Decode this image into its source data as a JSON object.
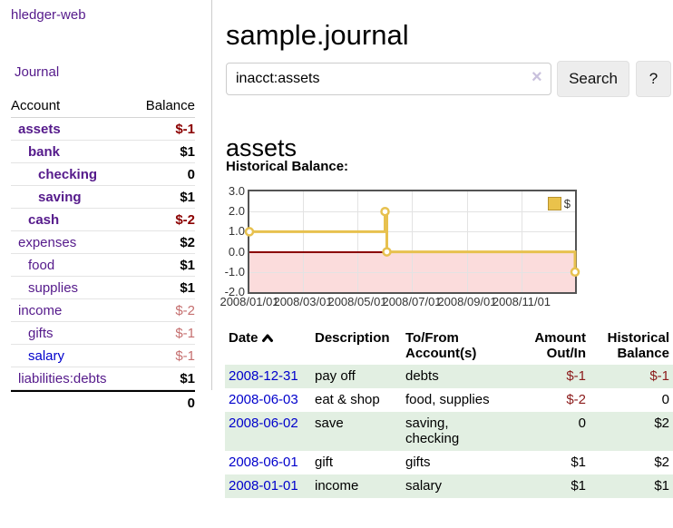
{
  "sidebar": {
    "brand": "hledger-web",
    "journal_link": "Journal",
    "accounts_table": {
      "headers": {
        "account": "Account",
        "balance": "Balance"
      },
      "rows": [
        {
          "label": "assets",
          "balance": "$-1",
          "indent": 1,
          "selected": true,
          "link": "purple",
          "balance_style": "neg-bold"
        },
        {
          "label": "bank",
          "balance": "$1",
          "indent": 2,
          "selected": true,
          "link": "purple",
          "balance_style": "pos"
        },
        {
          "label": "checking",
          "balance": "0",
          "indent": 3,
          "selected": true,
          "link": "purple",
          "balance_style": "pos"
        },
        {
          "label": "saving",
          "balance": "$1",
          "indent": 3,
          "selected": true,
          "link": "purple",
          "balance_style": "pos"
        },
        {
          "label": "cash",
          "balance": "$-2",
          "indent": 2,
          "selected": true,
          "link": "purple",
          "balance_style": "neg-bold"
        },
        {
          "label": "expenses",
          "balance": "$2",
          "indent": 1,
          "selected": false,
          "link": "purple",
          "balance_style": "pos"
        },
        {
          "label": "food",
          "balance": "$1",
          "indent": 2,
          "selected": false,
          "link": "purple",
          "balance_style": "pos"
        },
        {
          "label": "supplies",
          "balance": "$1",
          "indent": 2,
          "selected": false,
          "link": "purple",
          "balance_style": "pos"
        },
        {
          "label": "income",
          "balance": "$-2",
          "indent": 1,
          "selected": false,
          "link": "purple",
          "balance_style": "neg-light"
        },
        {
          "label": "gifts",
          "balance": "$-1",
          "indent": 2,
          "selected": false,
          "link": "purple",
          "balance_style": "neg-light"
        },
        {
          "label": "salary",
          "balance": "$-1",
          "indent": 2,
          "selected": false,
          "link": "blue",
          "balance_style": "neg-light"
        },
        {
          "label": "liabilities:debts",
          "balance": "$1",
          "indent": 1,
          "selected": false,
          "link": "purple",
          "balance_style": "pos"
        }
      ],
      "total": "0"
    }
  },
  "main": {
    "title": "sample.journal",
    "search": {
      "value": "inacct:assets",
      "clear_icon": "×",
      "button_label": "Search",
      "help_label": "?"
    },
    "account_heading": "assets",
    "chart_heading": "Historical Balance:",
    "register": {
      "headers": {
        "date": "Date",
        "description": "Description",
        "tofrom": "To/From Account(s)",
        "amount": "Amount Out/In",
        "balance": "Historical Balance"
      },
      "rows": [
        {
          "date": "2008-12-31",
          "description": "pay off",
          "accounts": "debts",
          "amount": "$-1",
          "amount_negative": true,
          "balance": "$-1",
          "balance_negative": true
        },
        {
          "date": "2008-06-03",
          "description": "eat & shop",
          "accounts": "food, supplies",
          "amount": "$-2",
          "amount_negative": true,
          "balance": "0",
          "balance_negative": false
        },
        {
          "date": "2008-06-02",
          "description": "save",
          "accounts": "saving,\nchecking",
          "amount": "0",
          "amount_negative": false,
          "balance": "$2",
          "balance_negative": false
        },
        {
          "date": "2008-06-01",
          "description": "gift",
          "accounts": "gifts",
          "amount": "$1",
          "amount_negative": false,
          "balance": "$2",
          "balance_negative": false
        },
        {
          "date": "2008-01-01",
          "description": "income",
          "accounts": "salary",
          "amount": "$1",
          "amount_negative": false,
          "balance": "$1",
          "balance_negative": false
        }
      ]
    }
  },
  "chart_data": {
    "type": "line",
    "title": "Historical Balance:",
    "step": true,
    "series": [
      {
        "name": "$",
        "points": [
          [
            "2008-01-01",
            1.0
          ],
          [
            "2008-06-01",
            2.0
          ],
          [
            "2008-06-03",
            0.0
          ],
          [
            "2008-12-31",
            -1.0
          ]
        ]
      }
    ],
    "x_range": [
      "2008-01-01",
      "2008-12-31"
    ],
    "ylim": [
      -2.0,
      3.0
    ],
    "yticks": [
      3.0,
      2.0,
      1.0,
      0.0,
      -1.0,
      -2.0
    ],
    "xticks": [
      "2008/01/01",
      "2008/03/01",
      "2008/05/01",
      "2008/07/01",
      "2008/09/01",
      "2008/11/01"
    ],
    "legend": {
      "label": "$",
      "position": "top-right"
    },
    "grid": true,
    "line_color": "#e7c14f",
    "legend_swatch_color": "#eac24b",
    "negative_fill": "#fbdcdc",
    "zero_line_color": "#8b0000"
  },
  "colors": {
    "link_purple": "#551a8b",
    "link_blue": "#0000cc",
    "negative_bold": "#8b0000",
    "negative_light": "#c56f6f",
    "negative_table": "#8b1a1a",
    "row_green": "#e2efe2"
  }
}
